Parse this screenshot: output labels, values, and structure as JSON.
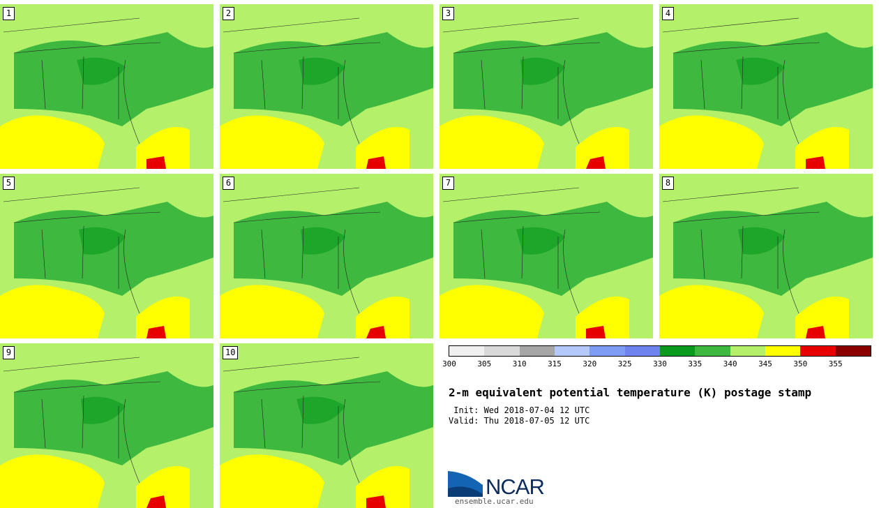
{
  "stamps": [
    {
      "label": "1"
    },
    {
      "label": "2"
    },
    {
      "label": "3"
    },
    {
      "label": "4"
    },
    {
      "label": "5"
    },
    {
      "label": "6"
    },
    {
      "label": "7"
    },
    {
      "label": "8"
    },
    {
      "label": "9"
    },
    {
      "label": "10"
    }
  ],
  "colorbar": {
    "colors": [
      "#f0f0f0",
      "#d9d9d9",
      "#a6a6a6",
      "#b4c8fa",
      "#7f9cf5",
      "#6f83ee",
      "#0a9a1e",
      "#3eb83e",
      "#b4f06a",
      "#ffff00",
      "#e60000",
      "#8a0000"
    ],
    "ticks": [
      "300",
      "305",
      "310",
      "315",
      "320",
      "325",
      "330",
      "335",
      "340",
      "345",
      "350",
      "355"
    ]
  },
  "title": "2-m equivalent potential temperature (K) postage stamp",
  "init": " Init: Wed 2018-07-04 12 UTC",
  "valid": "Valid: Thu 2018-07-05 12 UTC",
  "logo": {
    "text": "NCAR",
    "url": "ensemble.ucar.edu"
  }
}
